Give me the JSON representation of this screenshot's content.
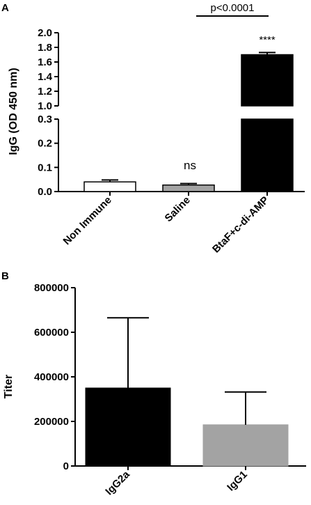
{
  "chart_data": [
    {
      "panel_label": "A",
      "type": "bar",
      "categories": [
        "Non Immune",
        "Saline",
        "BtaF+c-di-AMP"
      ],
      "values": [
        0.04,
        0.027,
        1.7
      ],
      "errors": [
        0.008,
        0.006,
        0.03
      ],
      "bar_colors": [
        "#ffffff",
        "#a3a3a3",
        "#000000"
      ],
      "ylabel": "IgG (OD 450 nm)",
      "axis_break": {
        "lower_range": [
          0,
          0.3
        ],
        "upper_range": [
          1.0,
          2.0
        ]
      },
      "yticks_lower": [
        "0.0",
        "0.1",
        "0.2",
        "0.3"
      ],
      "yticks_upper": [
        "1.0",
        "1.2",
        "1.4",
        "1.6",
        "1.8",
        "2.0"
      ],
      "annotations": {
        "comparison": "p<0.0001",
        "saline_sig": "ns",
        "btaf_sig": "****"
      }
    },
    {
      "panel_label": "B",
      "type": "bar",
      "categories": [
        "IgG2a",
        "IgG1"
      ],
      "values": [
        350000,
        185000
      ],
      "errors": [
        315000,
        147000
      ],
      "bar_colors": [
        "#000000",
        "#a3a3a3"
      ],
      "ylabel": "Titer",
      "ylim": [
        0,
        800000
      ],
      "yticks": [
        "0",
        "200000",
        "400000",
        "600000",
        "800000"
      ]
    }
  ]
}
